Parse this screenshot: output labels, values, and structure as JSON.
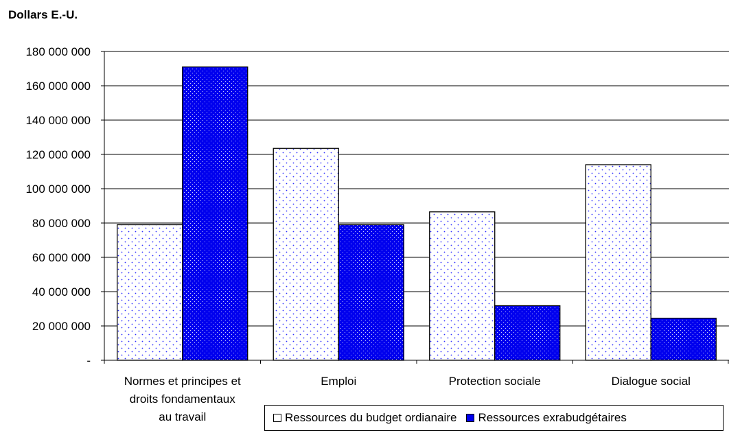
{
  "chart_data": {
    "type": "bar",
    "ylabel": "Dollars E.-U.",
    "categories": [
      [
        "Normes et principes et",
        "droits fondamentaux",
        "au travail"
      ],
      [
        "Emploi"
      ],
      [
        "Protection sociale"
      ],
      [
        "Dialogue social"
      ]
    ],
    "series": [
      {
        "name": "Ressources du budget ordianaire",
        "values": [
          79000000,
          123500000,
          86500000,
          114000000
        ],
        "color": "#ffffff",
        "pattern_color": "#3030ff"
      },
      {
        "name": "Ressources exrabudgétaires",
        "values": [
          171000000,
          79000000,
          31800000,
          24500000
        ],
        "color": "#0000ee",
        "pattern_color": "#ffffff"
      }
    ],
    "ylim": [
      0,
      180000000
    ],
    "yticks": [
      {
        "value": 0,
        "label": "-"
      },
      {
        "value": 20000000,
        "label": "20 000 000"
      },
      {
        "value": 40000000,
        "label": "40 000 000"
      },
      {
        "value": 60000000,
        "label": "60 000 000"
      },
      {
        "value": 80000000,
        "label": "80 000 000"
      },
      {
        "value": 100000000,
        "label": "100 000 000"
      },
      {
        "value": 120000000,
        "label": "120 000 000"
      },
      {
        "value": 140000000,
        "label": "140 000 000"
      },
      {
        "value": 160000000,
        "label": "160 000 000"
      },
      {
        "value": 180000000,
        "label": "180 000 000"
      }
    ],
    "grid": true,
    "legend_position": "bottom-right"
  }
}
